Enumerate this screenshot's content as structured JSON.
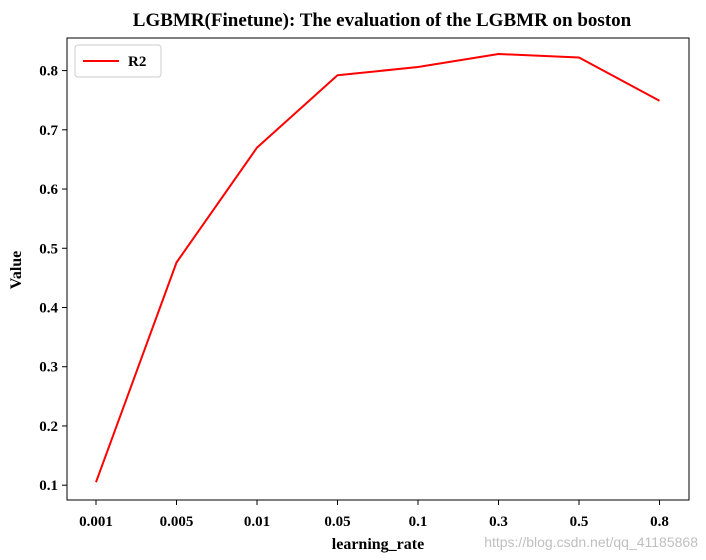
{
  "chart_data": {
    "type": "line",
    "title": "LGBMR(Finetune): The evaluation of the LGBMR on boston",
    "xlabel": "learning_rate",
    "ylabel": "Value",
    "categories": [
      "0.001",
      "0.005",
      "0.01",
      "0.05",
      "0.1",
      "0.3",
      "0.5",
      "0.8"
    ],
    "series": [
      {
        "name": "R2",
        "color": "#ff0000",
        "values": [
          0.105,
          0.476,
          0.67,
          0.792,
          0.806,
          0.828,
          0.822,
          0.749
        ]
      }
    ],
    "ylim": [
      0.075,
      0.855
    ],
    "yticks": [
      "0.1",
      "0.2",
      "0.3",
      "0.4",
      "0.5",
      "0.6",
      "0.7",
      "0.8"
    ],
    "grid": false,
    "legend_position": "upper-left"
  },
  "watermark": "https://blog.csdn.net/qq_41185868"
}
